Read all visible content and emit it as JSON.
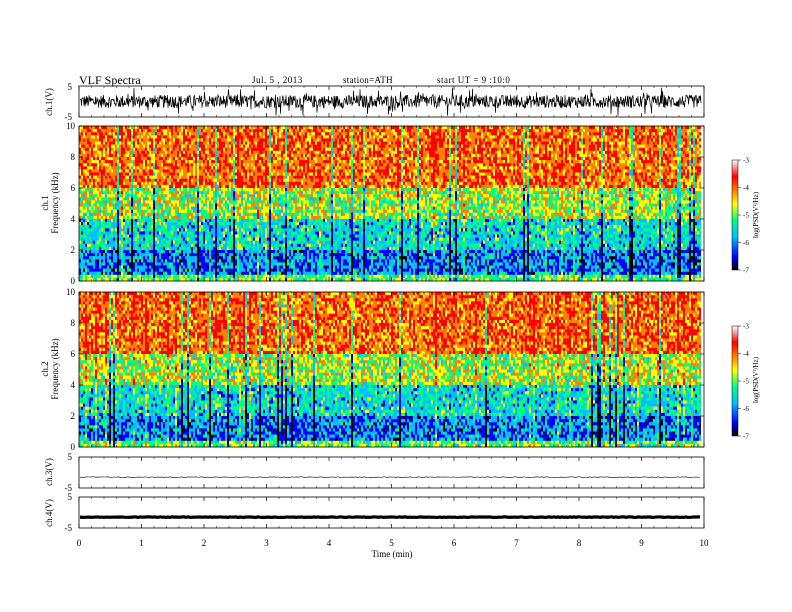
{
  "header": {
    "title": "VLF Spectra",
    "date": "Jul. 5 , 2013",
    "station": "station=ATH",
    "start_ut": "start UT = 9 :10:0"
  },
  "colors": {
    "spectrogram_scale": [
      "#000000",
      "#0000ff",
      "#00bfff",
      "#00ff80",
      "#ffff00",
      "#ff8000",
      "#ff0000",
      "#ffffff"
    ]
  },
  "chart_data": [
    {
      "type": "line",
      "ylabel": "ch.1(V)",
      "ylim": [
        -5,
        5
      ],
      "yticks": [
        "5",
        "-5"
      ],
      "description_values": {
        "x_range_min": [
          0,
          9.8
        ],
        "amplitude_V": 1.5
      }
    },
    {
      "type": "heatmap",
      "ylabel_channel": "ch.1",
      "ylabel": "Frequency (kHz)",
      "ylim": [
        0,
        10
      ],
      "yticks": [
        "0",
        "2",
        "4",
        "6",
        "8",
        "10"
      ],
      "x_range_min": [
        0,
        9.8
      ],
      "colorbar": {
        "label": "log(PSD(V²/Hz)",
        "range": [
          -7,
          -3
        ],
        "ticks": [
          "-3",
          "-4",
          "-5",
          "-6",
          "-7"
        ]
      }
    },
    {
      "type": "heatmap",
      "ylabel_channel": "ch.2",
      "ylabel": "Frequency (kHz)",
      "ylim": [
        0,
        10
      ],
      "yticks": [
        "0",
        "2",
        "4",
        "6",
        "8",
        "10"
      ],
      "x_range_min": [
        0,
        9.8
      ],
      "colorbar": {
        "label": "log(PSD(V²/Hz)",
        "range": [
          -7,
          -3
        ],
        "ticks": [
          "-3",
          "-4",
          "-5",
          "-6",
          "-7"
        ]
      }
    },
    {
      "type": "line",
      "ylabel": "ch.3(V)",
      "ylim": [
        -5,
        5
      ],
      "yticks": [
        "5",
        "-5"
      ],
      "level_V": -1.5
    },
    {
      "type": "line",
      "ylabel": "ch.4(V)",
      "ylim": [
        -5,
        5
      ],
      "yticks": [
        "5",
        "-5"
      ],
      "level_V": -1.5
    }
  ],
  "xaxis": {
    "label": "Time (min)",
    "ticks": [
      "0",
      "1",
      "2",
      "3",
      "4",
      "5",
      "6",
      "7",
      "8",
      "9",
      "10"
    ],
    "xlim": [
      0,
      10
    ]
  }
}
